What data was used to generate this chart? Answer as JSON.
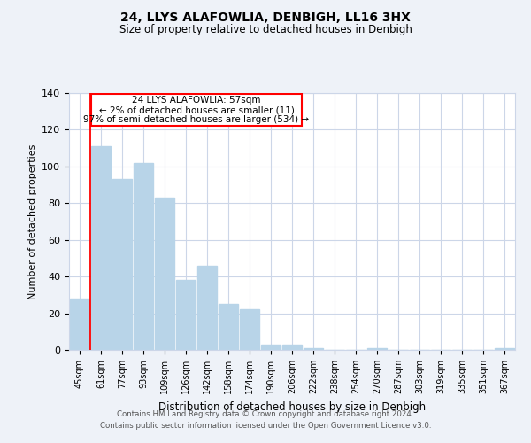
{
  "title": "24, LLYS ALAFOWLIA, DENBIGH, LL16 3HX",
  "subtitle": "Size of property relative to detached houses in Denbigh",
  "xlabel": "Distribution of detached houses by size in Denbigh",
  "ylabel": "Number of detached properties",
  "bar_labels": [
    "45sqm",
    "61sqm",
    "77sqm",
    "93sqm",
    "109sqm",
    "126sqm",
    "142sqm",
    "158sqm",
    "174sqm",
    "190sqm",
    "206sqm",
    "222sqm",
    "238sqm",
    "254sqm",
    "270sqm",
    "287sqm",
    "303sqm",
    "319sqm",
    "335sqm",
    "351sqm",
    "367sqm"
  ],
  "bar_values": [
    28,
    111,
    93,
    102,
    83,
    38,
    46,
    25,
    22,
    3,
    3,
    1,
    0,
    0,
    1,
    0,
    0,
    0,
    0,
    0,
    1
  ],
  "bar_color": "#b8d4e8",
  "ylim": [
    0,
    140
  ],
  "red_line_x": 0.5,
  "ann_title": "24 LLYS ALAFOWLIA: 57sqm",
  "ann_line2": "← 2% of detached houses are smaller (11)",
  "ann_line3": "97% of semi-detached houses are larger (534) →",
  "footer_line1": "Contains HM Land Registry data © Crown copyright and database right 2024.",
  "footer_line2": "Contains public sector information licensed under the Open Government Licence v3.0.",
  "background_color": "#eef2f8",
  "plot_bg_color": "#ffffff",
  "grid_color": "#ccd6e8"
}
